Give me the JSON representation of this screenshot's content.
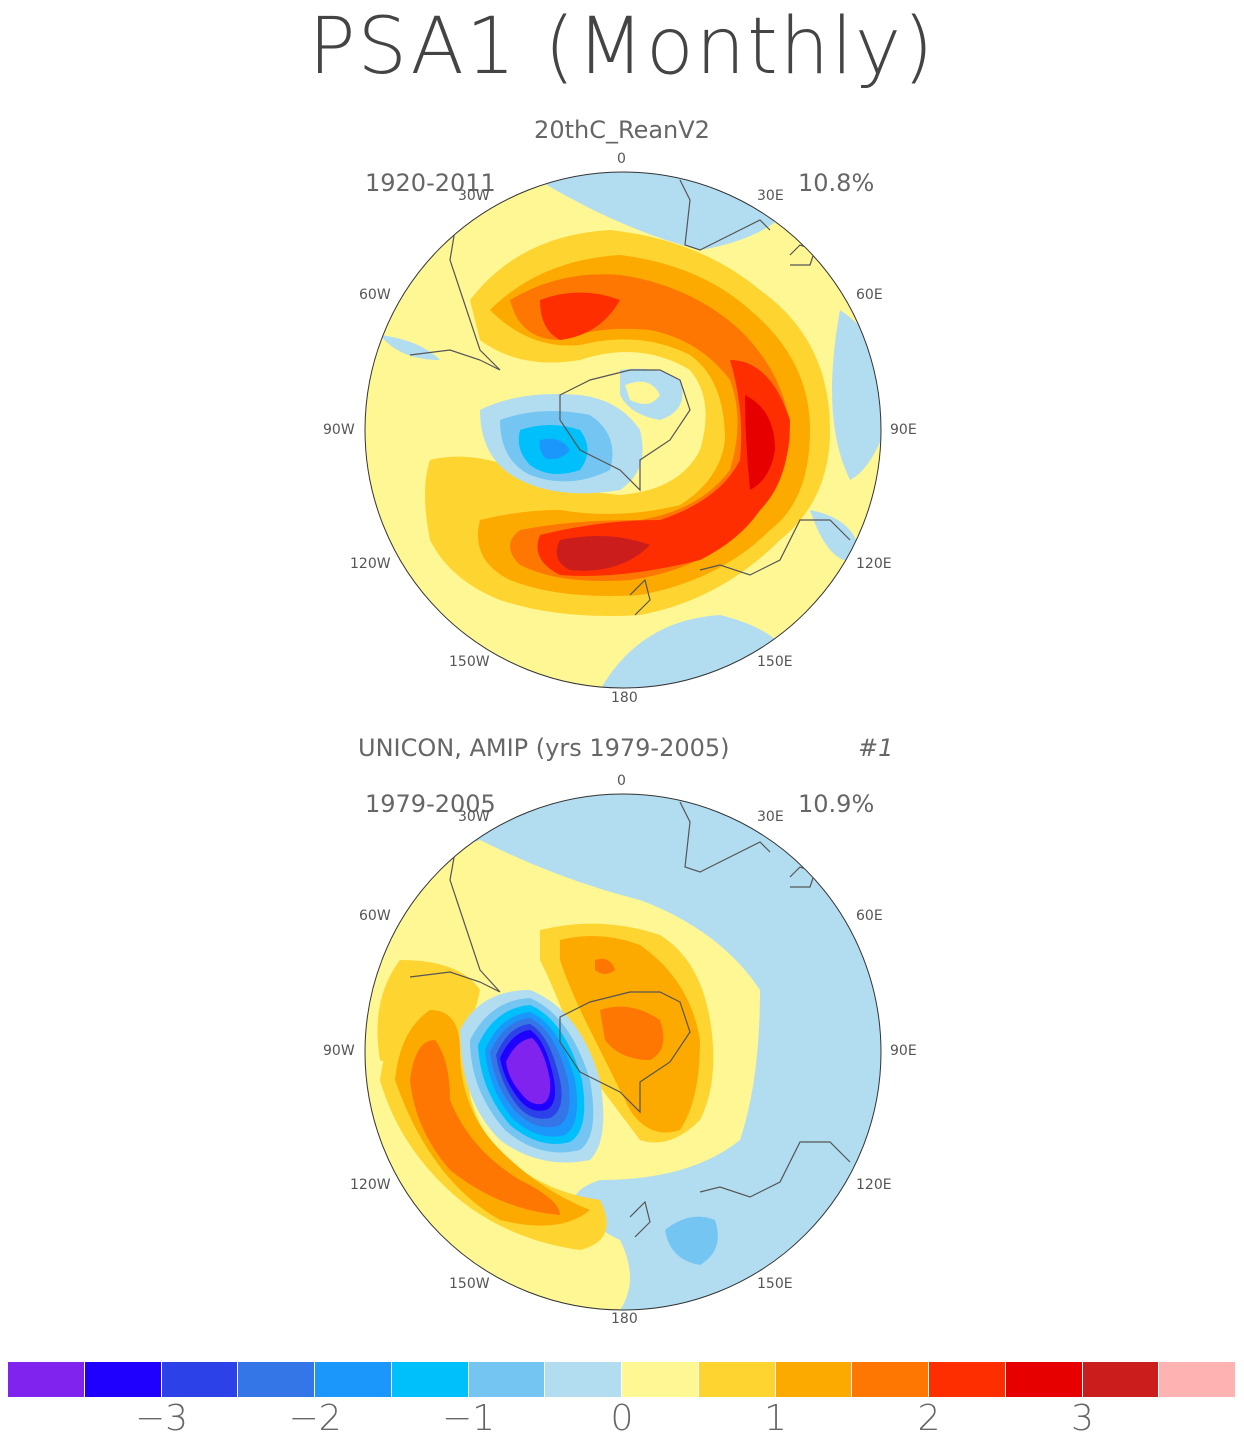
{
  "title": "PSA1 (Monthly)",
  "panels": [
    {
      "name": "20thC_ReanV2",
      "period": "1920-2011",
      "variance": "10.8%",
      "run": ""
    },
    {
      "name": "UNICON, AMIP (yrs 1979-2005)",
      "period": "1979-2005",
      "variance": "10.9%",
      "run": "#1"
    }
  ],
  "longitude_labels": {
    "top": "0",
    "l30w": "30W",
    "l30e": "30E",
    "l60w": "60W",
    "l60e": "60E",
    "l90w": "90W",
    "l90e": "90E",
    "l120w": "120W",
    "l120e": "120E",
    "l150w": "150W",
    "l150e": "150E",
    "bottom": "180"
  },
  "colorbar": {
    "colors": [
      "#8123ee",
      "#1f00ff",
      "#2c42e8",
      "#3476e8",
      "#1b97fb",
      "#00c0fb",
      "#75c5f3",
      "#b2ddf0",
      "#fff694",
      "#fed430",
      "#fdaa00",
      "#fe7702",
      "#ff2e00",
      "#e60000",
      "#cc1d1d",
      "#ffb2b2"
    ],
    "ticks": [
      "-3",
      "-2",
      "-1",
      "0",
      "1",
      "2",
      "3"
    ]
  }
}
